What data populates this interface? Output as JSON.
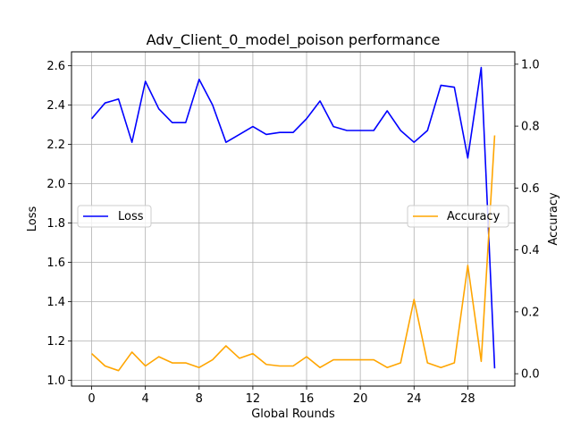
{
  "chart_data": {
    "type": "line",
    "title": "Adv_Client_0_model_poison performance",
    "xlabel": "Global Rounds",
    "ylabel_left": "Loss",
    "ylabel_right": "Accuracy",
    "grid": true,
    "x": [
      0,
      1,
      2,
      3,
      4,
      5,
      6,
      7,
      8,
      9,
      10,
      11,
      12,
      13,
      14,
      15,
      16,
      17,
      18,
      19,
      20,
      21,
      22,
      23,
      24,
      25,
      26,
      27,
      28,
      29,
      30
    ],
    "x_ticks": [
      "0",
      "4",
      "8",
      "12",
      "16",
      "20",
      "24",
      "28"
    ],
    "xlim": [
      -1.5,
      31.5
    ],
    "left_axis": {
      "ylim": [
        0.97,
        2.67
      ],
      "ticks": [
        "1.0",
        "1.2",
        "1.4",
        "1.6",
        "1.8",
        "2.0",
        "2.2",
        "2.4",
        "2.6"
      ]
    },
    "right_axis": {
      "ylim": [
        -0.04,
        1.04
      ],
      "ticks": [
        "0.0",
        "0.2",
        "0.4",
        "0.6",
        "0.8",
        "1.0"
      ]
    },
    "series": [
      {
        "name": "Loss",
        "axis": "left",
        "color": "#0000ff",
        "legend_position": "center-left",
        "values": [
          2.33,
          2.41,
          2.43,
          2.21,
          2.52,
          2.38,
          2.31,
          2.31,
          2.53,
          2.4,
          2.21,
          2.25,
          2.29,
          2.25,
          2.26,
          2.26,
          2.33,
          2.42,
          2.29,
          2.27,
          2.27,
          2.27,
          2.37,
          2.27,
          2.21,
          2.27,
          2.5,
          2.49,
          2.13,
          2.59,
          1.06
        ]
      },
      {
        "name": "Accuracy",
        "axis": "right",
        "color": "#ffa500",
        "legend_position": "center-right",
        "values": [
          0.065,
          0.025,
          0.01,
          0.07,
          0.025,
          0.055,
          0.035,
          0.035,
          0.02,
          0.045,
          0.09,
          0.05,
          0.065,
          0.03,
          0.025,
          0.025,
          0.055,
          0.02,
          0.045,
          0.045,
          0.045,
          0.045,
          0.02,
          0.035,
          0.24,
          0.035,
          0.02,
          0.035,
          0.35,
          0.04,
          0.77
        ]
      }
    ]
  }
}
